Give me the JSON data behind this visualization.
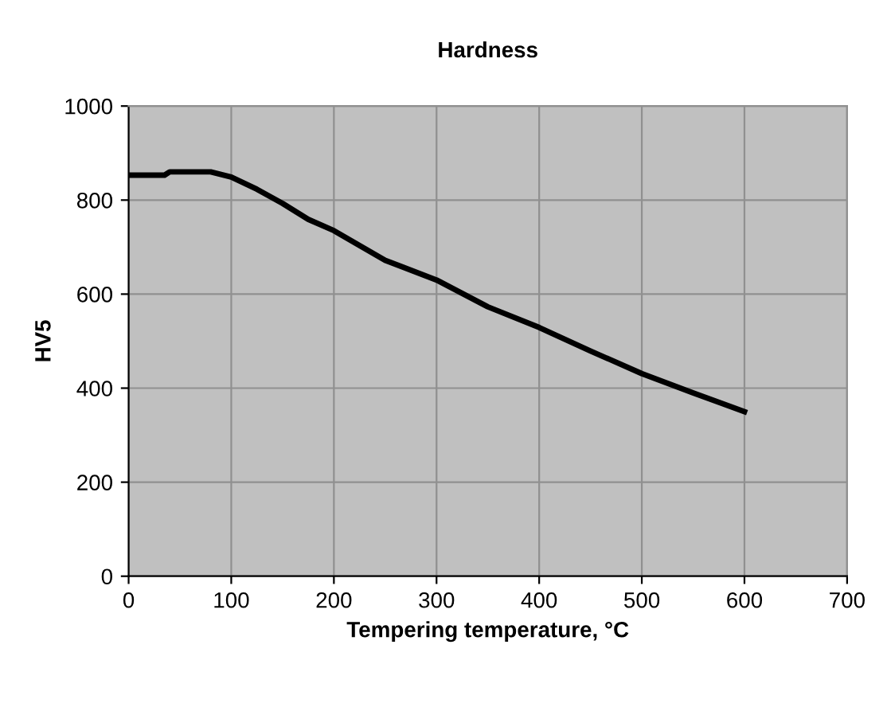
{
  "chart_data": {
    "type": "line",
    "title": "Hardness",
    "xlabel": "Tempering temperature, °C",
    "ylabel": "HV5",
    "x": [
      0,
      35,
      40,
      80,
      100,
      125,
      150,
      175,
      200,
      250,
      300,
      350,
      400,
      450,
      500,
      550,
      600
    ],
    "series": [
      {
        "color": "#000000",
        "values": [
          853,
          853,
          860,
          860,
          849,
          823,
          793,
          759,
          735,
          672,
          630,
          573,
          529,
          479,
          431,
          390,
          350
        ]
      }
    ],
    "xlim": [
      0,
      700
    ],
    "xticks": [
      0,
      100,
      200,
      300,
      400,
      500,
      600,
      700
    ],
    "ylim": [
      0,
      1000
    ],
    "yticks": [
      0,
      200,
      400,
      600,
      800,
      1000
    ],
    "grid": true,
    "legend": false,
    "marker": "none",
    "line_style": "solid"
  }
}
